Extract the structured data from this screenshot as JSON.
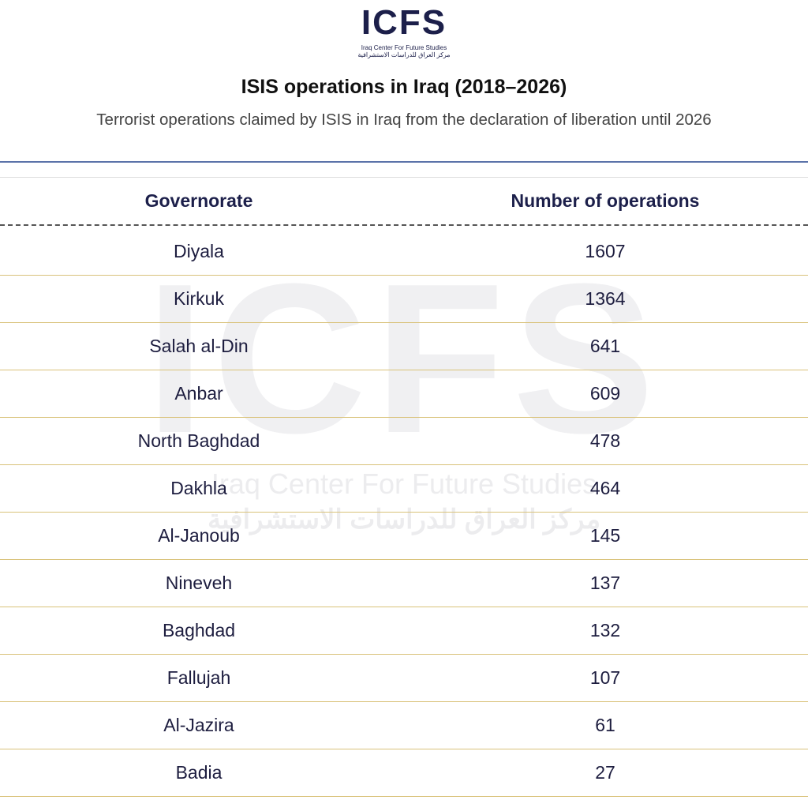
{
  "logo": {
    "mark": "ICFS",
    "name": "Iraq Center For Future Studies",
    "name_ar": "مركز العراق للدراسات الاستشرافية"
  },
  "header": {
    "title": "ISIS operations in Iraq (2018–2026)",
    "subtitle": "Terrorist operations claimed by ISIS in Iraq from the declaration of liberation until 2026"
  },
  "watermark": {
    "mark": "ICFS",
    "name": "Iraq Center For Future Studies",
    "name_ar": "مركز العراق للدراسات الاستشرافية"
  },
  "table": {
    "columns": [
      "Governorate",
      "Number of operations"
    ],
    "rows": [
      [
        "Diyala",
        1607
      ],
      [
        "Kirkuk",
        1364
      ],
      [
        "Salah al-Din",
        641
      ],
      [
        "Anbar",
        609
      ],
      [
        "North Baghdad",
        478
      ],
      [
        "Dakhla",
        464
      ],
      [
        "Al-Janoub",
        145
      ],
      [
        "Nineveh",
        137
      ],
      [
        "Baghdad",
        132
      ],
      [
        "Fallujah",
        107
      ],
      [
        "Al-Jazira",
        61
      ],
      [
        "Badia",
        27
      ]
    ]
  }
}
